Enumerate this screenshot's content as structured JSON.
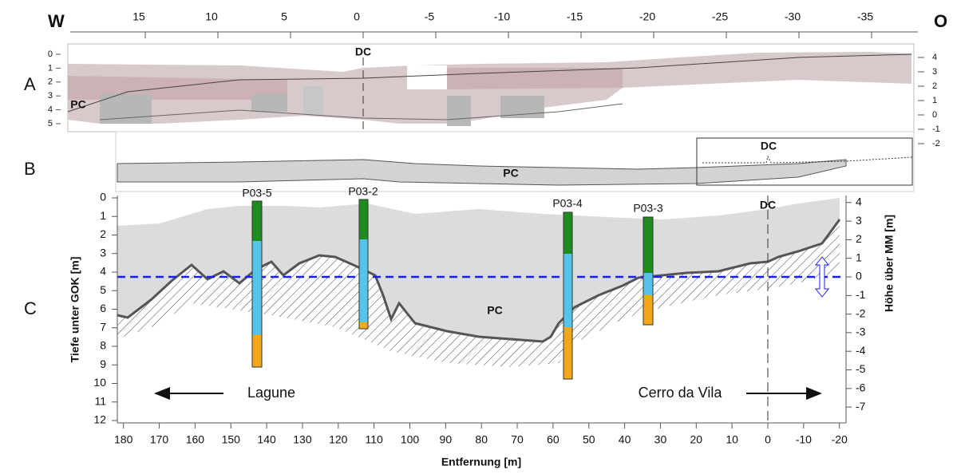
{
  "compass": {
    "west": "W",
    "east": "O"
  },
  "panel_labels": [
    "A",
    "B",
    "C"
  ],
  "top_axis": {
    "ticks": [
      15,
      10,
      5,
      0,
      -5,
      -10,
      -15,
      -20,
      -25,
      -30,
      -35
    ]
  },
  "panel_a": {
    "left_ticks": [
      0,
      1,
      2,
      3,
      4,
      5
    ],
    "right_ticks": [
      4,
      3,
      2,
      1,
      0,
      -1,
      -2
    ],
    "dc": "DC",
    "pc": "PC"
  },
  "panel_b": {
    "dc": "DC",
    "pc": "PC"
  },
  "panel_c": {
    "y_label": "Tiefe unter GOK [m]",
    "y2_label": "Höhe über MM [m]",
    "x_label": "Entfernung [m]",
    "xticks": [
      180,
      170,
      160,
      150,
      140,
      130,
      120,
      110,
      100,
      90,
      80,
      70,
      60,
      50,
      40,
      30,
      20,
      10,
      0,
      -10,
      -20
    ],
    "yticks": [
      0,
      1,
      2,
      3,
      4,
      5,
      6,
      7,
      8,
      9,
      10,
      11,
      12
    ],
    "y2ticks": [
      4,
      3,
      2,
      1,
      0,
      -1,
      -2,
      -3,
      -4,
      -5,
      -6,
      -7
    ],
    "boreholes": [
      "P03-5",
      "P03-2",
      "P03-4",
      "P03-3"
    ],
    "dc": "DC",
    "pc": "PC",
    "left_arrow": "Lagune",
    "right_arrow": "Cerro da Vila"
  }
}
